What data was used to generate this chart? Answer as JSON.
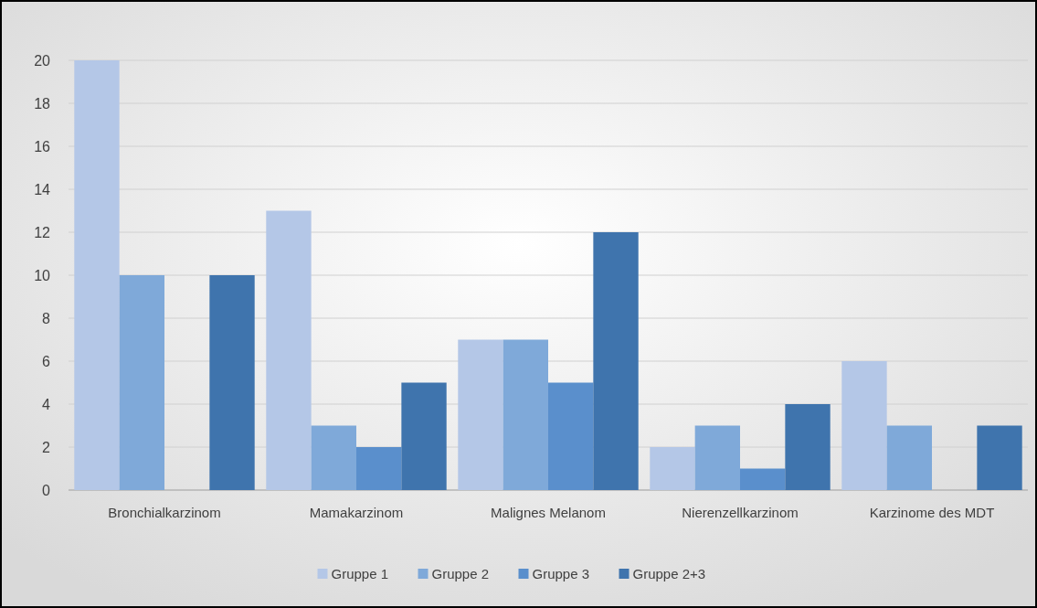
{
  "chart_data": {
    "type": "bar",
    "categories": [
      "Bronchialkarzinom",
      "Mamakarzinom",
      "Malignes Melanom",
      "Nierenzellkarzinom",
      "Karzinome des MDT"
    ],
    "series": [
      {
        "name": "Gruppe 1",
        "color": "#b4c7e7",
        "values": [
          20,
          13,
          7,
          2,
          6
        ]
      },
      {
        "name": "Gruppe 2",
        "color": "#7fa9d9",
        "values": [
          10,
          3,
          7,
          3,
          3
        ]
      },
      {
        "name": "Gruppe 3",
        "color": "#5a8fcc",
        "values": [
          0,
          2,
          5,
          1,
          0
        ]
      },
      {
        "name": "Gruppe 2+3",
        "color": "#3f74ad",
        "values": [
          10,
          5,
          12,
          4,
          3
        ]
      }
    ],
    "ylim": [
      0,
      20
    ],
    "yticks": [
      0,
      2,
      4,
      6,
      8,
      10,
      12,
      14,
      16,
      18,
      20
    ],
    "grid": "y",
    "legend": "bottom"
  }
}
